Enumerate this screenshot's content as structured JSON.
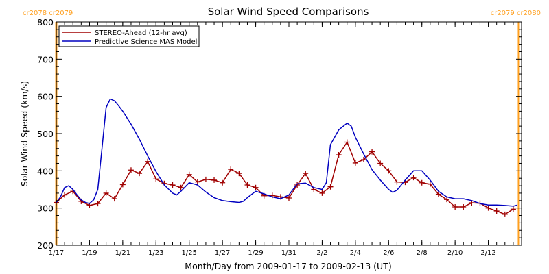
{
  "chart_data": {
    "type": "line",
    "title": "Solar Wind Speed Comparisons",
    "xlabel": "Month/Day from 2009-01-17 to 2009-02-13 (UT)",
    "ylabel": "Solar Wind Speed (km/s)",
    "ylim": [
      200,
      800
    ],
    "xlim": [
      "2009-01-17",
      "2009-02-14"
    ],
    "y_ticks": [
      200,
      300,
      400,
      500,
      600,
      700,
      800
    ],
    "x_ticks": [
      {
        "label": "1/17",
        "date": "2009-01-17"
      },
      {
        "label": "1/19",
        "date": "2009-01-19"
      },
      {
        "label": "1/21",
        "date": "2009-01-21"
      },
      {
        "label": "1/23",
        "date": "2009-01-23"
      },
      {
        "label": "1/25",
        "date": "2009-01-25"
      },
      {
        "label": "1/27",
        "date": "2009-01-27"
      },
      {
        "label": "1/29",
        "date": "2009-01-29"
      },
      {
        "label": "1/31",
        "date": "2009-01-31"
      },
      {
        "label": "2/2",
        "date": "2009-02-02"
      },
      {
        "label": "2/4",
        "date": "2009-02-04"
      },
      {
        "label": "2/6",
        "date": "2009-02-06"
      },
      {
        "label": "2/8",
        "date": "2009-02-08"
      },
      {
        "label": "2/10",
        "date": "2009-02-10"
      },
      {
        "label": "2/12",
        "date": "2009-02-12"
      }
    ],
    "grid": false,
    "legend_position": "top-left",
    "carrington_markers": [
      {
        "label": "cr2078 cr2079",
        "date": "2009-01-17",
        "side": "left"
      },
      {
        "label": "cr2079 cr2080",
        "date": "2009-02-13T20:00",
        "side": "right"
      }
    ],
    "series": [
      {
        "name": "STEREO-Ahead (12-hr avg)",
        "color": "#a00000",
        "marker": "plus",
        "points": [
          [
            "2009-01-17T00:00",
            315
          ],
          [
            "2009-01-17T12:00",
            335
          ],
          [
            "2009-01-18T00:00",
            345
          ],
          [
            "2009-01-18T12:00",
            318
          ],
          [
            "2009-01-19T00:00",
            307
          ],
          [
            "2009-01-19T12:00",
            312
          ],
          [
            "2009-01-20T00:00",
            340
          ],
          [
            "2009-01-20T12:00",
            325
          ],
          [
            "2009-01-21T00:00",
            363
          ],
          [
            "2009-01-21T12:00",
            402
          ],
          [
            "2009-01-22T00:00",
            393
          ],
          [
            "2009-01-22T12:00",
            425
          ],
          [
            "2009-01-23T00:00",
            378
          ],
          [
            "2009-01-23T12:00",
            366
          ],
          [
            "2009-01-24T00:00",
            362
          ],
          [
            "2009-01-24T12:00",
            355
          ],
          [
            "2009-01-25T00:00",
            390
          ],
          [
            "2009-01-25T12:00",
            370
          ],
          [
            "2009-01-26T00:00",
            377
          ],
          [
            "2009-01-26T12:00",
            375
          ],
          [
            "2009-01-27T00:00",
            368
          ],
          [
            "2009-01-27T12:00",
            404
          ],
          [
            "2009-01-28T00:00",
            393
          ],
          [
            "2009-01-28T12:00",
            362
          ],
          [
            "2009-01-29T00:00",
            355
          ],
          [
            "2009-01-29T12:00",
            333
          ],
          [
            "2009-01-30T00:00",
            334
          ],
          [
            "2009-01-30T12:00",
            330
          ],
          [
            "2009-01-31T00:00",
            327
          ],
          [
            "2009-01-31T12:00",
            362
          ],
          [
            "2009-02-01T00:00",
            393
          ],
          [
            "2009-02-01T12:00",
            350
          ],
          [
            "2009-02-02T00:00",
            340
          ],
          [
            "2009-02-02T12:00",
            357
          ],
          [
            "2009-02-03T00:00",
            443
          ],
          [
            "2009-02-03T12:00",
            477
          ],
          [
            "2009-02-04T00:00",
            421
          ],
          [
            "2009-02-04T12:00",
            430
          ],
          [
            "2009-02-05T00:00",
            451
          ],
          [
            "2009-02-05T12:00",
            420
          ],
          [
            "2009-02-06T00:00",
            400
          ],
          [
            "2009-02-06T12:00",
            370
          ],
          [
            "2009-02-07T00:00",
            369
          ],
          [
            "2009-02-07T12:00",
            382
          ],
          [
            "2009-02-08T00:00",
            368
          ],
          [
            "2009-02-08T12:00",
            364
          ],
          [
            "2009-02-09T00:00",
            337
          ],
          [
            "2009-02-09T12:00",
            323
          ],
          [
            "2009-02-10T00:00",
            303
          ],
          [
            "2009-02-10T12:00",
            303
          ],
          [
            "2009-02-11T00:00",
            314
          ],
          [
            "2009-02-11T12:00",
            313
          ],
          [
            "2009-02-12T00:00",
            300
          ],
          [
            "2009-02-12T12:00",
            292
          ],
          [
            "2009-02-13T00:00",
            283
          ],
          [
            "2009-02-13T12:00",
            297
          ]
        ]
      },
      {
        "name": "Predictive Science MAS Model",
        "color": "#0000c0",
        "marker": "none",
        "points": [
          [
            "2009-01-17T00:00",
            315
          ],
          [
            "2009-01-17T06:00",
            330
          ],
          [
            "2009-01-17T12:00",
            355
          ],
          [
            "2009-01-17T18:00",
            360
          ],
          [
            "2009-01-18T00:00",
            350
          ],
          [
            "2009-01-18T06:00",
            335
          ],
          [
            "2009-01-18T12:00",
            322
          ],
          [
            "2009-01-18T18:00",
            315
          ],
          [
            "2009-01-19T00:00",
            312
          ],
          [
            "2009-01-19T06:00",
            322
          ],
          [
            "2009-01-19T12:00",
            350
          ],
          [
            "2009-01-19T18:00",
            460
          ],
          [
            "2009-01-20T00:00",
            570
          ],
          [
            "2009-01-20T06:00",
            593
          ],
          [
            "2009-01-20T12:00",
            588
          ],
          [
            "2009-01-20T18:00",
            575
          ],
          [
            "2009-01-21T00:00",
            560
          ],
          [
            "2009-01-21T12:00",
            525
          ],
          [
            "2009-01-22T00:00",
            485
          ],
          [
            "2009-01-22T12:00",
            440
          ],
          [
            "2009-01-23T00:00",
            398
          ],
          [
            "2009-01-23T12:00",
            362
          ],
          [
            "2009-01-24T00:00",
            340
          ],
          [
            "2009-01-24T06:00",
            335
          ],
          [
            "2009-01-24T12:00",
            345
          ],
          [
            "2009-01-25T00:00",
            368
          ],
          [
            "2009-01-25T12:00",
            362
          ],
          [
            "2009-01-26T00:00",
            343
          ],
          [
            "2009-01-26T12:00",
            328
          ],
          [
            "2009-01-27T00:00",
            320
          ],
          [
            "2009-01-27T12:00",
            317
          ],
          [
            "2009-01-28T00:00",
            315
          ],
          [
            "2009-01-28T06:00",
            318
          ],
          [
            "2009-01-28T12:00",
            328
          ],
          [
            "2009-01-29T00:00",
            345
          ],
          [
            "2009-01-29T12:00",
            338
          ],
          [
            "2009-01-30T00:00",
            330
          ],
          [
            "2009-01-30T12:00",
            325
          ],
          [
            "2009-01-31T00:00",
            335
          ],
          [
            "2009-01-31T12:00",
            365
          ],
          [
            "2009-02-01T00:00",
            367
          ],
          [
            "2009-02-01T12:00",
            355
          ],
          [
            "2009-02-02T00:00",
            350
          ],
          [
            "2009-02-02T06:00",
            368
          ],
          [
            "2009-02-02T12:00",
            470
          ],
          [
            "2009-02-03T00:00",
            510
          ],
          [
            "2009-02-03T12:00",
            528
          ],
          [
            "2009-02-03T18:00",
            520
          ],
          [
            "2009-02-04T00:00",
            490
          ],
          [
            "2009-02-04T12:00",
            445
          ],
          [
            "2009-02-05T00:00",
            403
          ],
          [
            "2009-02-05T12:00",
            375
          ],
          [
            "2009-02-06T00:00",
            350
          ],
          [
            "2009-02-06T06:00",
            342
          ],
          [
            "2009-02-06T12:00",
            348
          ],
          [
            "2009-02-07T00:00",
            375
          ],
          [
            "2009-02-07T12:00",
            400
          ],
          [
            "2009-02-08T00:00",
            400
          ],
          [
            "2009-02-08T12:00",
            375
          ],
          [
            "2009-02-09T00:00",
            345
          ],
          [
            "2009-02-09T12:00",
            330
          ],
          [
            "2009-02-10T00:00",
            325
          ],
          [
            "2009-02-10T12:00",
            325
          ],
          [
            "2009-02-11T00:00",
            320
          ],
          [
            "2009-02-11T12:00",
            312
          ],
          [
            "2009-02-12T00:00",
            308
          ],
          [
            "2009-02-12T12:00",
            308
          ],
          [
            "2009-02-13T00:00",
            307
          ],
          [
            "2009-02-13T12:00",
            305
          ],
          [
            "2009-02-13T18:00",
            308
          ]
        ]
      }
    ]
  }
}
